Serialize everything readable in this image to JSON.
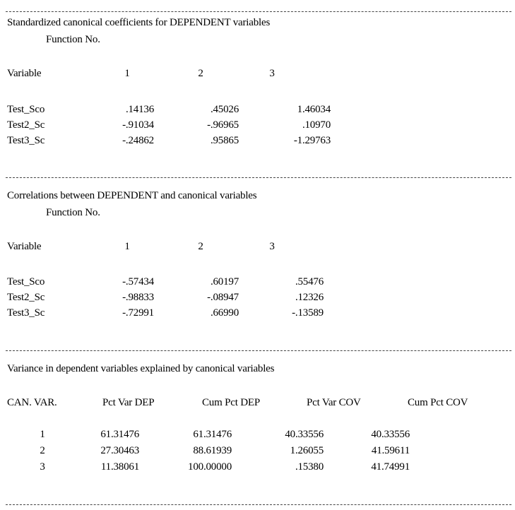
{
  "section1": {
    "title": "Standardized canonical coefficients for DEPENDENT variables",
    "subtitle": "Function No.",
    "headers": [
      "Variable",
      "1",
      "2",
      "3"
    ],
    "rows": [
      {
        "variable": "Test_Sco",
        "values": [
          ".14136",
          ".45026",
          "1.46034"
        ]
      },
      {
        "variable": "Test2_Sc",
        "values": [
          "-.91034",
          "-.96965",
          ".10970"
        ]
      },
      {
        "variable": "Test3_Sc",
        "values": [
          "-.24862",
          ".95865",
          "-1.29763"
        ]
      }
    ]
  },
  "section2": {
    "title": "Correlations between DEPENDENT and canonical variables",
    "subtitle": "Function No.",
    "headers": [
      "Variable",
      "1",
      "2",
      "3"
    ],
    "rows": [
      {
        "variable": "Test_Sco",
        "values": [
          "-.57434",
          ".60197",
          ".55476"
        ]
      },
      {
        "variable": "Test2_Sc",
        "values": [
          "-.98833",
          "-.08947",
          ".12326"
        ]
      },
      {
        "variable": "Test3_Sc",
        "values": [
          "-.72991",
          ".66990",
          "-.13589"
        ]
      }
    ]
  },
  "section3": {
    "title": "Variance in dependent variables explained by canonical variables",
    "headers": [
      "CAN. VAR.",
      "Pct Var DEP",
      "Cum Pct DEP",
      "Pct Var COV",
      "Cum Pct COV"
    ],
    "rows": [
      [
        "1",
        "61.31476",
        "61.31476",
        "40.33556",
        "40.33556"
      ],
      [
        "2",
        "27.30463",
        "88.61939",
        "1.26055",
        "41.59611"
      ],
      [
        "3",
        "11.38061",
        "100.00000",
        ".15380",
        "41.74991"
      ]
    ]
  }
}
